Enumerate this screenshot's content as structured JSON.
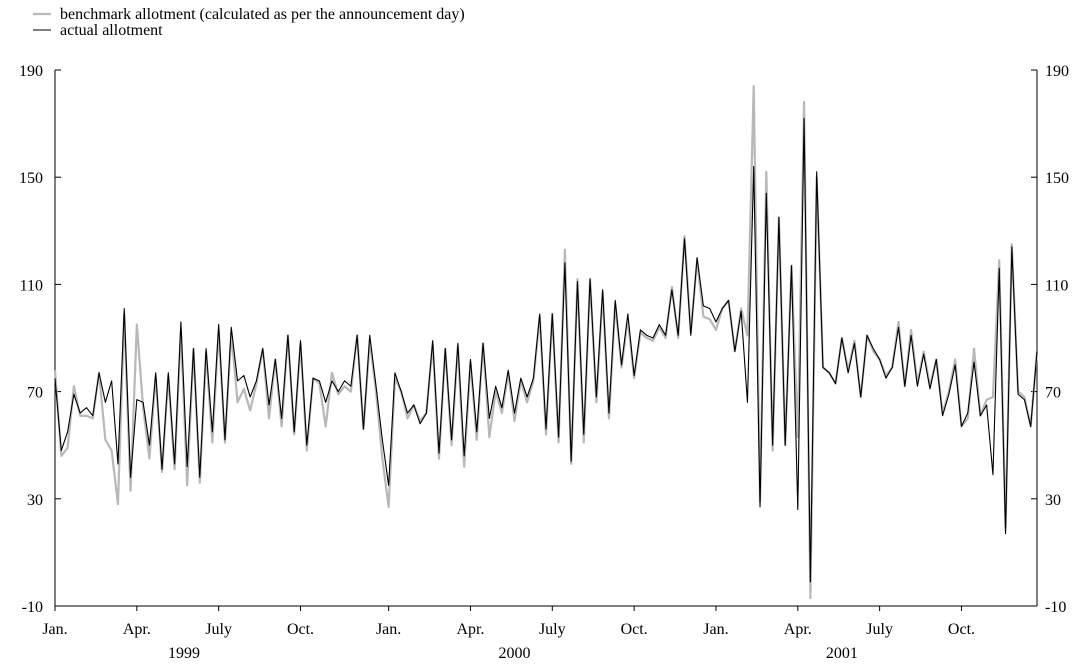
{
  "chart_data": {
    "type": "line",
    "categories": [
      "Jan.",
      null,
      null,
      null,
      null,
      null,
      null,
      null,
      null,
      null,
      null,
      null,
      null,
      "Apr.",
      null,
      null,
      null,
      null,
      null,
      null,
      null,
      null,
      null,
      null,
      null,
      null,
      "July",
      null,
      null,
      null,
      null,
      null,
      null,
      null,
      null,
      null,
      null,
      null,
      null,
      "Oct.",
      null,
      null,
      null,
      null,
      null,
      null,
      null,
      null,
      null,
      null,
      null,
      null,
      null,
      "Jan.",
      null,
      null,
      null,
      null,
      null,
      null,
      null,
      null,
      null,
      null,
      null,
      null,
      "Apr.",
      null,
      null,
      null,
      null,
      null,
      null,
      null,
      null,
      null,
      null,
      null,
      null,
      "July",
      null,
      null,
      null,
      null,
      null,
      null,
      null,
      null,
      null,
      null,
      null,
      null,
      "Oct.",
      null,
      null,
      null,
      null,
      null,
      null,
      null,
      null,
      null,
      null,
      null,
      null,
      "Jan.",
      null,
      null,
      null,
      null,
      null,
      null,
      null,
      null,
      null,
      null,
      null,
      null,
      "Apr.",
      null,
      null,
      null,
      null,
      null,
      null,
      null,
      null,
      null,
      null,
      null,
      null,
      "July",
      null,
      null,
      null,
      null,
      null,
      null,
      null,
      null,
      null,
      null,
      null,
      null,
      "Oct.",
      null,
      null,
      null,
      null,
      null,
      null,
      null,
      null,
      null,
      null,
      null,
      null
    ],
    "years": [
      "1999",
      "2000",
      "2001"
    ],
    "series": [
      {
        "name": "benchmark allotment (calculated as per the announcement day)",
        "color": "#b8b8b8",
        "width": 2.2,
        "values": [
          78,
          46,
          49,
          72,
          61,
          61,
          60,
          77,
          52,
          48,
          28,
          99,
          33,
          95,
          64,
          45,
          76,
          40,
          76,
          41,
          93,
          35,
          86,
          36,
          85,
          51,
          93,
          51,
          92,
          66,
          71,
          63,
          73,
          86,
          60,
          82,
          57,
          91,
          54,
          88,
          48,
          75,
          73,
          57,
          77,
          69,
          72,
          70,
          91,
          56,
          89,
          70,
          45,
          27,
          75,
          70,
          60,
          65,
          59,
          62,
          88,
          45,
          86,
          50,
          87,
          42,
          81,
          52,
          88,
          53,
          70,
          62,
          77,
          59,
          74,
          66,
          74,
          98,
          54,
          99,
          51,
          123,
          43,
          112,
          51,
          112,
          66,
          107,
          60,
          103,
          79,
          97,
          75,
          92,
          90,
          89,
          94,
          90,
          109,
          90,
          128,
          92,
          119,
          98,
          97,
          93,
          101,
          104,
          85,
          101,
          91,
          184,
          29,
          152,
          48,
          135,
          50,
          117,
          53,
          178,
          -7,
          150,
          79,
          77,
          73,
          90,
          78,
          89,
          68,
          91,
          85,
          82,
          76,
          79,
          96,
          72,
          93,
          73,
          85,
          72,
          82,
          62,
          70,
          82,
          57,
          60,
          86,
          61,
          67,
          68,
          119,
          19,
          125,
          70,
          68,
          57,
          85
        ]
      },
      {
        "name": "actual allotment",
        "color": "#000000",
        "width": 1.1,
        "values": [
          75,
          48,
          55,
          69,
          62,
          64,
          61,
          77,
          66,
          74,
          43,
          101,
          38,
          67,
          66,
          50,
          77,
          41,
          77,
          43,
          96,
          42,
          86,
          38,
          86,
          55,
          95,
          52,
          94,
          74,
          76,
          68,
          74,
          86,
          65,
          82,
          60,
          91,
          55,
          89,
          50,
          75,
          74,
          66,
          74,
          70,
          74,
          72,
          91,
          56,
          91,
          72,
          52,
          35,
          77,
          70,
          62,
          65,
          58,
          62,
          89,
          47,
          86,
          52,
          88,
          46,
          82,
          55,
          88,
          60,
          72,
          64,
          78,
          62,
          75,
          68,
          75,
          99,
          56,
          99,
          53,
          118,
          44,
          111,
          54,
          112,
          68,
          108,
          62,
          104,
          80,
          99,
          76,
          93,
          91,
          90,
          95,
          91,
          108,
          91,
          127,
          91,
          120,
          102,
          101,
          96,
          101,
          104,
          85,
          100,
          66,
          154,
          27,
          144,
          50,
          135,
          50,
          117,
          26,
          172,
          -1,
          152,
          79,
          77,
          73,
          90,
          77,
          88,
          68,
          91,
          86,
          82,
          75,
          79,
          94,
          72,
          91,
          72,
          84,
          71,
          82,
          61,
          69,
          80,
          57,
          62,
          81,
          61,
          65,
          39,
          116,
          17,
          124,
          69,
          67,
          57,
          85
        ]
      }
    ],
    "ylim": [
      -10,
      190
    ],
    "yticks": [
      -10,
      30,
      70,
      110,
      150,
      190
    ],
    "right_axis": true,
    "grid": false,
    "legend": "top-left"
  }
}
